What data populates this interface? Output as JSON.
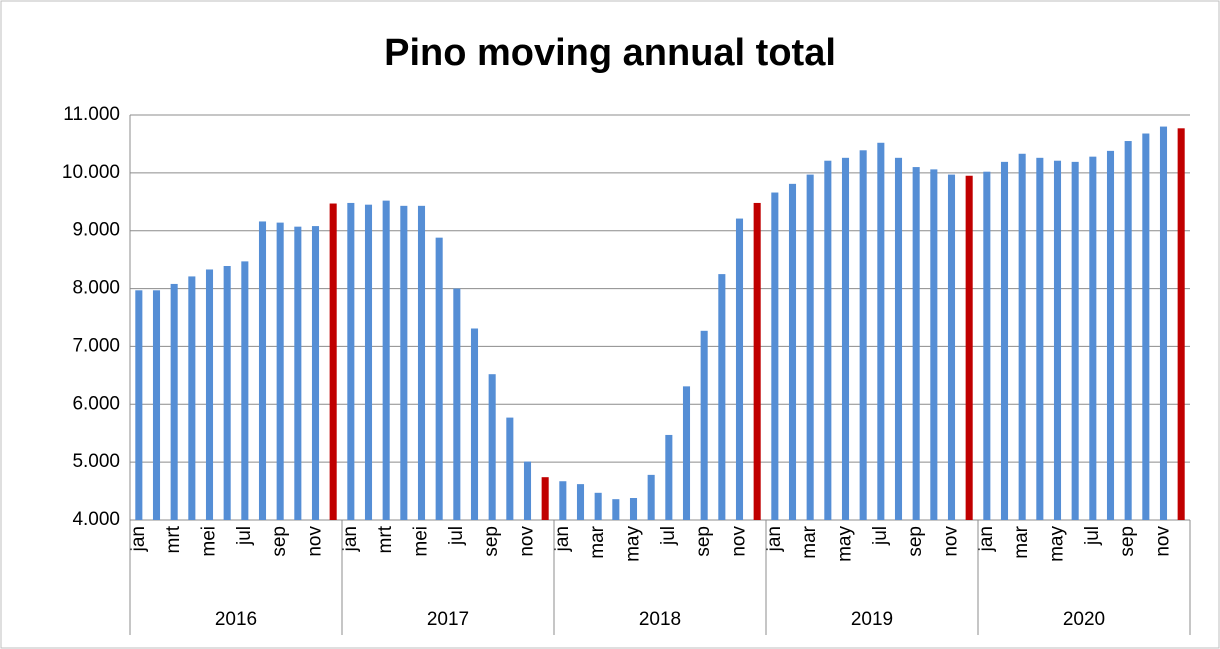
{
  "chart_data": {
    "type": "bar",
    "title": "Pino  moving annual total",
    "categories": [
      "jan",
      null,
      "mrt",
      null,
      "mei",
      null,
      "jul",
      null,
      "sep",
      null,
      "nov",
      null,
      "jan",
      null,
      "mrt",
      null,
      "mei",
      null,
      "jul",
      null,
      "sep",
      null,
      "nov",
      null,
      "jan",
      null,
      "mar",
      null,
      "may",
      null,
      "jul",
      null,
      "sep",
      null,
      "nov",
      null,
      "jan",
      null,
      "mar",
      null,
      "may",
      null,
      "jul",
      null,
      "sep",
      null,
      "nov",
      null,
      "jan",
      null,
      "mar",
      null,
      "may",
      null,
      "jul",
      null,
      "sep",
      null,
      "nov",
      null
    ],
    "groups": [
      "2016",
      "2017",
      "2018",
      "2019",
      "2020"
    ],
    "values": [
      7970,
      7970,
      8080,
      8210,
      8330,
      8390,
      8470,
      9160,
      9140,
      9070,
      9080,
      9470,
      9480,
      9450,
      9520,
      9430,
      9430,
      8880,
      8000,
      7310,
      6520,
      5770,
      5010,
      4740,
      4670,
      4620,
      4470,
      4360,
      4380,
      4780,
      5470,
      6310,
      7270,
      8250,
      9210,
      9480,
      9660,
      9810,
      9970,
      10210,
      10260,
      10390,
      10520,
      10260,
      10100,
      10060,
      9970,
      9950,
      10020,
      10190,
      10330,
      10260,
      10210,
      10190,
      10280,
      10380,
      10550,
      10680,
      10800,
      10770
    ],
    "colors": [
      "#558ed5",
      "#558ed5",
      "#558ed5",
      "#558ed5",
      "#558ed5",
      "#558ed5",
      "#558ed5",
      "#558ed5",
      "#558ed5",
      "#558ed5",
      "#558ed5",
      "#c00000",
      "#558ed5",
      "#558ed5",
      "#558ed5",
      "#558ed5",
      "#558ed5",
      "#558ed5",
      "#558ed5",
      "#558ed5",
      "#558ed5",
      "#558ed5",
      "#558ed5",
      "#c00000",
      "#558ed5",
      "#558ed5",
      "#558ed5",
      "#558ed5",
      "#558ed5",
      "#558ed5",
      "#558ed5",
      "#558ed5",
      "#558ed5",
      "#558ed5",
      "#558ed5",
      "#c00000",
      "#558ed5",
      "#558ed5",
      "#558ed5",
      "#558ed5",
      "#558ed5",
      "#558ed5",
      "#558ed5",
      "#558ed5",
      "#558ed5",
      "#558ed5",
      "#558ed5",
      "#c00000",
      "#558ed5",
      "#558ed5",
      "#558ed5",
      "#558ed5",
      "#558ed5",
      "#558ed5",
      "#558ed5",
      "#558ed5",
      "#558ed5",
      "#558ed5",
      "#558ed5",
      "#c00000"
    ],
    "ylim": [
      4000,
      11000
    ],
    "yticks": [
      {
        "value": 4000,
        "label": "4.000"
      },
      {
        "value": 5000,
        "label": "5.000"
      },
      {
        "value": 6000,
        "label": "6.000"
      },
      {
        "value": 7000,
        "label": "7.000"
      },
      {
        "value": 8000,
        "label": "8.000"
      },
      {
        "value": 9000,
        "label": "9.000"
      },
      {
        "value": 10000,
        "label": "10.000"
      },
      {
        "value": 11000,
        "label": "11.000"
      }
    ],
    "grid": true
  }
}
